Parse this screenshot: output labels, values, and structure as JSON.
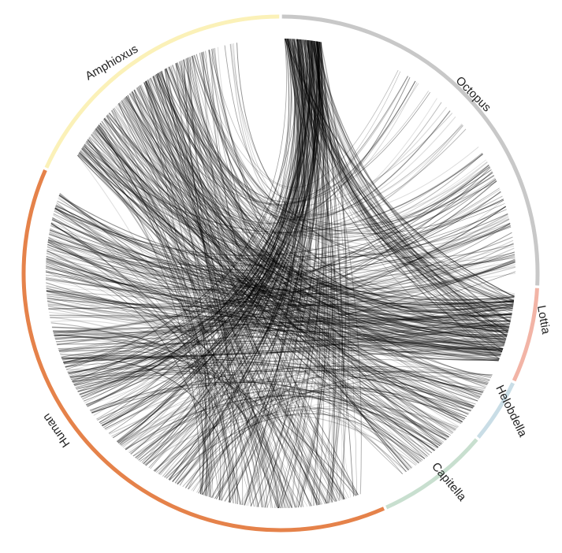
{
  "segments": [
    {
      "label": "Octopus"
    },
    {
      "label": "Lottia"
    },
    {
      "label": "Helobdella"
    },
    {
      "label": "Capitella"
    },
    {
      "label": "Human"
    },
    {
      "label": "Amphioxus"
    }
  ]
}
